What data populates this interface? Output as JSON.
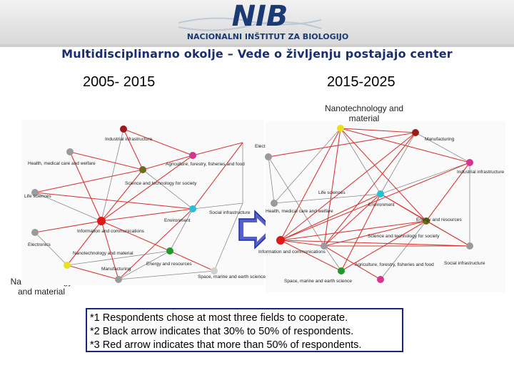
{
  "header": {
    "logo_text": "NIB",
    "institute_name": "NACIONALNI INŠTITUT ZA BIOLOGIJO"
  },
  "title": "Multidisciplinarno okolje – Vede o življenju postajajo center",
  "periods": {
    "left": "2005- 2015",
    "right": "2015-2025"
  },
  "external_labels": {
    "left_nano": "Nanotechnology and material",
    "right_nano": "Nanotechnology and material"
  },
  "node_labels": {
    "left": {
      "industrial": "Industrial infrastructure",
      "electronics": "Electronics",
      "health": "Health, medical care and welfare",
      "agriculture": "Agriculture, forestry, fisheries and food",
      "science_society": "Science and technology for society",
      "life_sciences": "Life sciences",
      "environment": "Environment",
      "social_infra": "Social infrastructure",
      "information": "Information and communications",
      "electronics2": "Electronics",
      "nanotech": "Nanotechnology and material",
      "manufacturing": "Manufacturing",
      "energy": "Energy and resources",
      "space": "Space, marine and earth science"
    },
    "right": {
      "manufacturing": "Manufacturing",
      "industrial": "Industrial infrastructure",
      "life_sciences": "Life sciences",
      "environment": "Environment",
      "health": "Health, medical care and welfare",
      "energy": "Energy and resources",
      "science_society": "Science and technology for society",
      "information": "Information and communications",
      "agriculture": "Agriculture, forestry, fisheries and food",
      "social_infra": "Social infrastructure",
      "space": "Space, marine and earth science"
    }
  },
  "notes": [
    "*1  Respondents chose at most three fields to cooperate.",
    "*2  Black arrow indicates that 30% to 50% of respondents.",
    "*3  Red arrow indicates that more than 50% of respondents."
  ],
  "colors": {
    "title": "#1a2e6e",
    "red_edge": "#d83a3a",
    "gray_edge": "#8a8a8a",
    "arrow_fill": "#5560c8",
    "notes_border": "#1a237e"
  }
}
